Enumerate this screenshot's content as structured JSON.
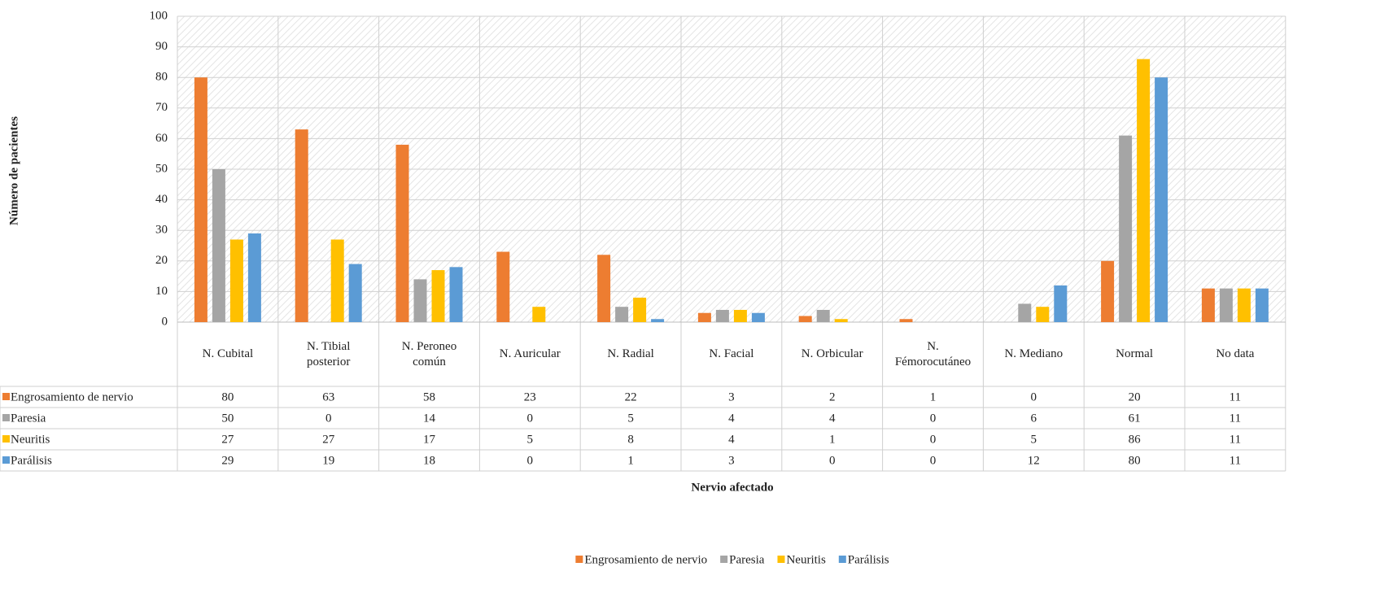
{
  "chart_data": {
    "type": "bar",
    "y_label": "Número de pacientes",
    "x_label": "Nervio afectado",
    "categories": [
      "N. Cubital",
      "N. Tibial posterior",
      "N. Peroneo común",
      "N. Auricular",
      "N. Radial",
      "N. Facial",
      "N. Orbicular",
      "N. Fémorocutáneo",
      "N. Mediano",
      "Normal",
      "No data"
    ],
    "series": [
      {
        "name": "Engrosamiento de nervio",
        "color": "#ed7d31",
        "values": [
          80,
          63,
          58,
          23,
          22,
          3,
          2,
          1,
          0,
          20,
          11
        ]
      },
      {
        "name": "Paresia",
        "color": "#a5a5a5",
        "values": [
          50,
          0,
          14,
          0,
          5,
          4,
          4,
          0,
          6,
          61,
          11
        ]
      },
      {
        "name": "Neuritis",
        "color": "#ffc000",
        "values": [
          27,
          27,
          17,
          5,
          8,
          4,
          1,
          0,
          5,
          86,
          11
        ]
      },
      {
        "name": "Parálisis",
        "color": "#5b9bd5",
        "values": [
          29,
          19,
          18,
          0,
          1,
          3,
          0,
          0,
          12,
          80,
          11
        ]
      }
    ],
    "ylim": [
      0,
      100
    ],
    "yticks": [
      0,
      10,
      20,
      30,
      40,
      50,
      60,
      70,
      80,
      90,
      100
    ],
    "grid": true,
    "legend": "bottom"
  }
}
